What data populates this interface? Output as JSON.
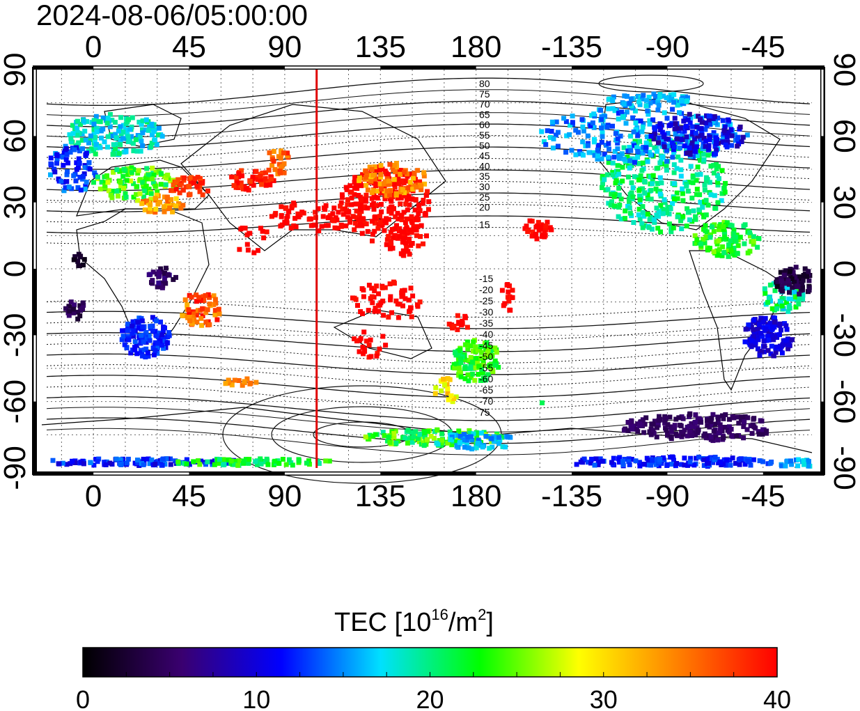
{
  "timestamp": "2024-08-06/05:00:00",
  "map": {
    "x_ticks_bottom": [
      "0",
      "45",
      "90",
      "135",
      "180",
      "-135",
      "-90",
      "-45"
    ],
    "x_ticks_top": [
      "0",
      "45",
      "90",
      "135",
      "180",
      "-135",
      "-90",
      "-45"
    ],
    "y_ticks_left": [
      "90",
      "60",
      "30",
      "0",
      "-30",
      "-60",
      "-90"
    ],
    "y_ticks_right": [
      "90",
      "60",
      "30",
      "0",
      "-30",
      "-60",
      "-90"
    ],
    "contour_labels_north": [
      "80",
      "75",
      "70",
      "65",
      "60",
      "55",
      "50",
      "45",
      "40",
      "35",
      "30",
      "25",
      "20",
      "15"
    ],
    "contour_labels_south": [
      "-15",
      "-20",
      "-25",
      "-30",
      "-35",
      "-40",
      "-45",
      "-50",
      "-55",
      "-60",
      "-65",
      "-70",
      "75"
    ],
    "terminator_longitude": 105,
    "line_color": "#e00000"
  },
  "colorbar": {
    "title_main": "TEC  [10",
    "title_sup": "16",
    "title_mid": "/m",
    "title_sup2": "2",
    "title_end": "]",
    "min": 0,
    "max": 40,
    "ticks": [
      "0",
      "10",
      "20",
      "30",
      "40"
    ],
    "colors": [
      "#000000",
      "#3a0070",
      "#0000ff",
      "#00e0ff",
      "#00ff00",
      "#ffff00",
      "#ff8000",
      "#ff0000"
    ]
  }
}
